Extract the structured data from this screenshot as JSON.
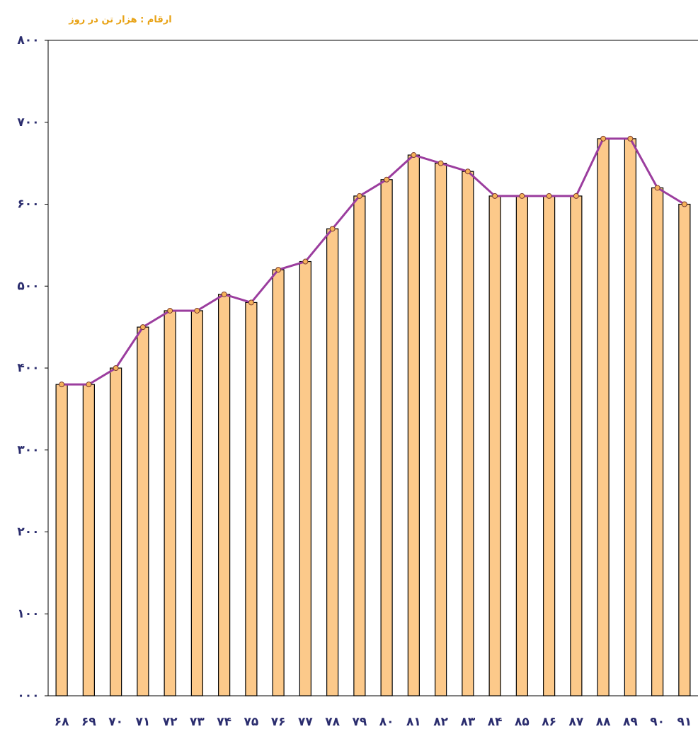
{
  "chart_data": {
    "type": "bar",
    "title": "ارقام : هزار تن در روز",
    "categories": [
      "۶۸",
      "۶۹",
      "۷۰",
      "۷۱",
      "۷۲",
      "۷۳",
      "۷۴",
      "۷۵",
      "۷۶",
      "۷۷",
      "۷۸",
      "۷۹",
      "۸۰",
      "۸۱",
      "۸۲",
      "۸۳",
      "۸۴",
      "۸۵",
      "۸۶",
      "۸۷",
      "۸۸",
      "۸۹",
      "۹۰",
      "۹۱"
    ],
    "values": [
      380,
      380,
      400,
      450,
      470,
      470,
      490,
      480,
      520,
      530,
      570,
      610,
      630,
      660,
      650,
      640,
      610,
      610,
      610,
      610,
      680,
      680,
      620,
      600
    ],
    "color": "#fcc98a",
    "line_color": "#9b3d9e",
    "marker_color": "#f6b25a",
    "ylim": [
      0,
      800
    ],
    "yticks": [
      {
        "value": 0,
        "label": "۰۰۰"
      },
      {
        "value": 100,
        "label": "۱۰۰"
      },
      {
        "value": 200,
        "label": "۲۰۰"
      },
      {
        "value": 300,
        "label": "۳۰۰"
      },
      {
        "value": 400,
        "label": "۴۰۰"
      },
      {
        "value": 500,
        "label": "۵۰۰"
      },
      {
        "value": 600,
        "label": "۶۰۰"
      },
      {
        "value": 700,
        "label": "۷۰۰"
      },
      {
        "value": 800,
        "label": "۸۰۰"
      }
    ]
  }
}
